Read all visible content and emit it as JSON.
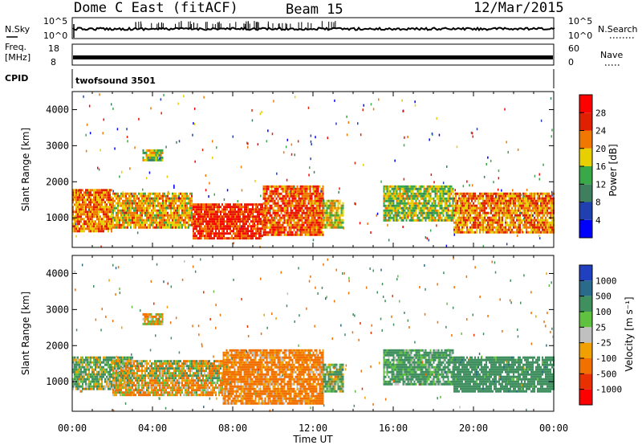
{
  "header": {
    "station": "Dome C East (fitACF)",
    "beam": "Beam 15",
    "date": "12/Mar/2015"
  },
  "status_panels": {
    "nsky_label": "N.Sky",
    "nsky_ticks": [
      "10^5",
      "10^0"
    ],
    "nsearch_label": "N.Search",
    "nsearch_ticks": [
      "10^5",
      "10^0"
    ],
    "freq_label": "Freq.",
    "freq_unit": "[MHz]",
    "freq_ticks": [
      "18",
      "8"
    ],
    "nave_label": "Nave",
    "nave_ticks": [
      "60",
      "0"
    ],
    "cpid_label": "CPID",
    "cpid_value": "twofsound 3501"
  },
  "chart_data": [
    {
      "type": "heatmap",
      "panel": "power",
      "xlabel": "",
      "ylabel": "Slant Range [km]",
      "x_ticks": [
        "00:00",
        "04:00",
        "08:00",
        "12:00",
        "16:00",
        "20:00",
        "00:00"
      ],
      "y_ticks": [
        1000,
        2000,
        3000,
        4000
      ],
      "ylim": [
        180,
        4500
      ],
      "xlim_hours": [
        0,
        24
      ],
      "colorbar": {
        "label": "Power [dB]",
        "ticks": [
          "4",
          "8",
          "12",
          "16",
          "20",
          "24",
          "28"
        ],
        "colors": [
          "#0000ff",
          "#2040b0",
          "#3f7f5f",
          "#38a848",
          "#e8d000",
          "#f07800",
          "#e02000",
          "#ff0000"
        ]
      },
      "bands": [
        {
          "t0": 0.0,
          "t1": 2.0,
          "r0": 600,
          "r1": 1800,
          "v": 22
        },
        {
          "t0": 2.0,
          "t1": 6.0,
          "r0": 700,
          "r1": 1700,
          "v": 20
        },
        {
          "t0": 6.0,
          "t1": 9.5,
          "r0": 400,
          "r1": 1400,
          "v": 26
        },
        {
          "t0": 9.5,
          "t1": 12.5,
          "r0": 500,
          "r1": 1900,
          "v": 24
        },
        {
          "t0": 12.5,
          "t1": 13.5,
          "r0": 700,
          "r1": 1500,
          "v": 18
        },
        {
          "t0": 15.5,
          "t1": 19.0,
          "r0": 900,
          "r1": 1900,
          "v": 16
        },
        {
          "t0": 19.0,
          "t1": 24.0,
          "r0": 600,
          "r1": 1700,
          "v": 22
        },
        {
          "t0": 3.5,
          "t1": 4.5,
          "r0": 2600,
          "r1": 2900,
          "v": 16
        }
      ]
    },
    {
      "type": "heatmap",
      "panel": "velocity",
      "xlabel": "Time UT",
      "ylabel": "Slant Range [km]",
      "x_ticks": [
        "00:00",
        "04:00",
        "08:00",
        "12:00",
        "16:00",
        "20:00",
        "00:00"
      ],
      "y_ticks": [
        1000,
        2000,
        3000,
        4000
      ],
      "ylim": [
        180,
        4500
      ],
      "xlim_hours": [
        0,
        24
      ],
      "colorbar": {
        "label": "Velocity [m s⁻¹]",
        "ticks": [
          "1000",
          "500",
          "100",
          "25",
          "-25",
          "-100",
          "-500",
          "-1000"
        ],
        "colors": [
          "#2040c0",
          "#2a6a8a",
          "#3f8f5f",
          "#60c040",
          "#c0c0c0",
          "#f0a000",
          "#f07000",
          "#e83000",
          "#ff0000"
        ]
      },
      "bands": [
        {
          "t0": 0.0,
          "t1": 3.0,
          "r0": 800,
          "r1": 1700,
          "v": 100
        },
        {
          "t0": 2.0,
          "t1": 7.5,
          "r0": 1000,
          "r1": 1600,
          "v": 0
        },
        {
          "t0": 2.0,
          "t1": 7.5,
          "r0": 600,
          "r1": 1000,
          "v": -100
        },
        {
          "t0": 7.5,
          "t1": 12.5,
          "r0": 400,
          "r1": 1900,
          "v": -200
        },
        {
          "t0": 12.5,
          "t1": 13.5,
          "r0": 700,
          "r1": 1500,
          "v": 100
        },
        {
          "t0": 15.5,
          "t1": 19.0,
          "r0": 900,
          "r1": 1900,
          "v": 200
        },
        {
          "t0": 19.0,
          "t1": 24.0,
          "r0": 700,
          "r1": 1700,
          "v": 300
        },
        {
          "t0": 3.5,
          "t1": 4.5,
          "r0": 2600,
          "r1": 2900,
          "v": -100
        }
      ]
    }
  ]
}
